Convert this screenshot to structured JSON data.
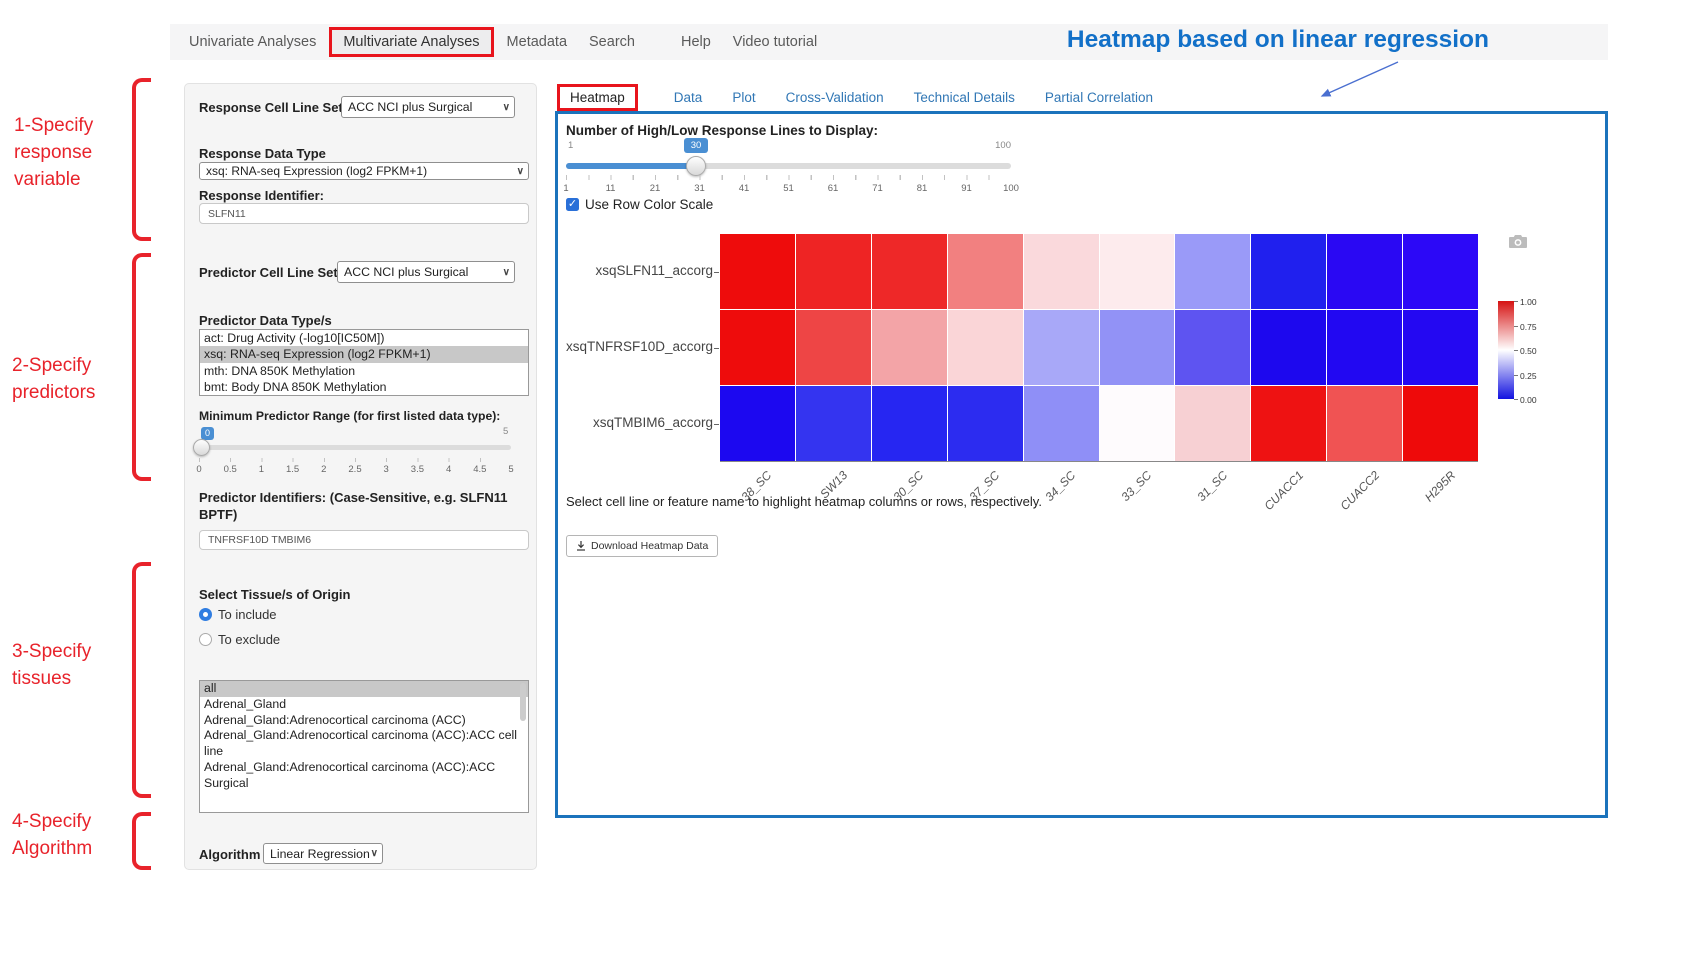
{
  "annotations": {
    "heading": "Heatmap based on linear regression",
    "steps": [
      "1-Specify response variable",
      "2-Specify predictors",
      "3-Specify tissues",
      "4-Specify Algorithm"
    ],
    "accent_red": "#e8232b",
    "accent_blue": "#1270c8",
    "panel_border_blue": "#1b73bc"
  },
  "navbar": {
    "items": [
      "Univariate Analyses",
      "Multivariate Analyses",
      "Metadata",
      "Search",
      "Help",
      "Video tutorial"
    ],
    "active_index": 1
  },
  "sidebar": {
    "response_cell_line": {
      "label": "Response Cell Line Set",
      "value": "ACC NCI plus Surgical"
    },
    "response_data_type": {
      "label": "Response Data Type",
      "value": "xsq: RNA-seq Expression (log2 FPKM+1)"
    },
    "response_identifier": {
      "label": "Response Identifier:",
      "value": "SLFN11"
    },
    "predictor_cell_line": {
      "label": "Predictor Cell Line Set",
      "value": "ACC NCI plus Surgical"
    },
    "predictor_data_types": {
      "label": "Predictor Data Type/s",
      "options": [
        "act: Drug Activity (-log10[IC50M])",
        "xsq: RNA-seq Expression (log2 FPKM+1)",
        "mth: DNA 850K Methylation",
        "bmt: Body DNA 850K Methylation"
      ],
      "selected_index": 1
    },
    "min_predictor_range": {
      "label": "Minimum Predictor Range (for first listed data type):",
      "value": "0",
      "min": "0",
      "max": "5",
      "ticks": [
        "0",
        "0.5",
        "1",
        "1.5",
        "2",
        "2.5",
        "3",
        "3.5",
        "4",
        "4.5",
        "5"
      ]
    },
    "predictor_identifiers": {
      "label": "Predictor Identifiers: (Case-Sensitive, e.g. SLFN11 BPTF)",
      "value": "TNFRSF10D TMBIM6"
    },
    "tissues": {
      "label": "Select Tissue/s of Origin",
      "include_label": "To include",
      "exclude_label": "To exclude",
      "selected_mode": "include",
      "options": [
        "all",
        "Adrenal_Gland",
        "Adrenal_Gland:Adrenocortical carcinoma (ACC)",
        "Adrenal_Gland:Adrenocortical carcinoma (ACC):ACC cell line",
        "Adrenal_Gland:Adrenocortical carcinoma (ACC):ACC Surgical"
      ],
      "selected_index": 0
    },
    "algorithm": {
      "label": "Algorithm",
      "value": "Linear Regression"
    }
  },
  "main": {
    "tabs": [
      "Heatmap",
      "Data",
      "Plot",
      "Cross-Validation",
      "Technical Details",
      "Partial Correlation"
    ],
    "active_tab": "Heatmap",
    "lines_slider": {
      "label": "Number of High/Low Response Lines to Display:",
      "value": "30",
      "min": "1",
      "max": "100",
      "ticks": [
        "1",
        "11",
        "21",
        "31",
        "41",
        "51",
        "61",
        "71",
        "81",
        "91",
        "100"
      ]
    },
    "row_color_scale": {
      "label": "Use Row Color Scale",
      "checked": true
    },
    "instruction": "Select cell line or feature name to highlight heatmap columns or rows, respectively.",
    "download_label": "Download Heatmap Data"
  },
  "ui": {
    "chevron_glyph": "∨",
    "check_glyph": "✓"
  },
  "chart_data": {
    "type": "heatmap",
    "title": "",
    "rows": [
      "xsqSLFN11_accorg",
      "xsqTNFRSF10D_accorg",
      "xsqTMBIM6_accorg"
    ],
    "columns": [
      "38_SC",
      "SW13",
      "30_SC",
      "37_SC",
      "34_SC",
      "33_SC",
      "31_SC",
      "CUACC1",
      "CUACC2",
      "H295R"
    ],
    "values": [
      [
        1.0,
        0.94,
        0.93,
        0.77,
        0.57,
        0.54,
        0.3,
        0.06,
        0.02,
        0.0
      ],
      [
        1.0,
        0.86,
        0.7,
        0.58,
        0.33,
        0.29,
        0.18,
        0.02,
        0.01,
        0.0
      ],
      [
        0.0,
        0.09,
        0.05,
        0.07,
        0.28,
        0.5,
        0.64,
        0.95,
        0.81,
        1.0
      ]
    ],
    "cell_colors": [
      [
        "#ee0c0c",
        "#ee2424",
        "#ee2828",
        "#f28080",
        "#fad9dc",
        "#fdebed",
        "#9a9af8",
        "#2020ee",
        "#2a08f3",
        "#2c08f7"
      ],
      [
        "#ee0c0c",
        "#ee4545",
        "#f3a4a7",
        "#fad5d7",
        "#a8a8f8",
        "#9292f6",
        "#5e54f1",
        "#1d08ee",
        "#2208f2",
        "#2408f2"
      ],
      [
        "#1c08f0",
        "#3434f0",
        "#2626f2",
        "#2c2cf0",
        "#8f8ff7",
        "#fefbfd",
        "#f7d0d3",
        "#ee1212",
        "#f05353",
        "#ee0a0a"
      ]
    ],
    "value_range": [
      0,
      1
    ],
    "row_color_scale": true,
    "legend_position": "right",
    "colorbar": {
      "ticks": [
        "1.00",
        "0.75",
        "0.50",
        "0.25",
        "0.00"
      ],
      "gradient": [
        "#d61212",
        "#ffffff",
        "#1212e0"
      ]
    }
  }
}
